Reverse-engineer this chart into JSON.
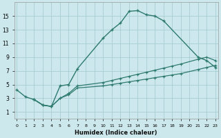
{
  "xlabel": "Humidex (Indice chaleur)",
  "bg_color": "#cde8ec",
  "grid_color": "#a8cdd4",
  "line_color": "#2d7a6e",
  "curve_x": [
    0,
    1,
    2,
    3,
    4,
    5,
    6,
    7,
    10,
    11,
    12,
    13,
    14,
    15,
    16,
    17,
    21,
    22,
    23
  ],
  "curve_y": [
    4.2,
    3.2,
    2.8,
    2.0,
    1.8,
    4.8,
    5.0,
    7.3,
    11.8,
    13.0,
    14.0,
    15.7,
    15.8,
    15.2,
    15.0,
    14.3,
    9.0,
    8.5,
    7.5
  ],
  "flat1_x": [
    2,
    3,
    4,
    5,
    6,
    7,
    10,
    11,
    12,
    13,
    14,
    15,
    16,
    17,
    18,
    19,
    21,
    22,
    23
  ],
  "flat1_y": [
    2.8,
    2.0,
    1.8,
    3.0,
    3.5,
    4.5,
    4.8,
    5.0,
    5.2,
    5.4,
    5.6,
    5.8,
    6.0,
    6.2,
    6.4,
    6.6,
    7.2,
    7.5,
    7.8
  ],
  "flat2_x": [
    2,
    3,
    4,
    5,
    6,
    7,
    10,
    11,
    12,
    13,
    14,
    15,
    16,
    17,
    18,
    19,
    21,
    22,
    23
  ],
  "flat2_y": [
    2.8,
    2.0,
    1.8,
    3.0,
    3.7,
    4.8,
    5.3,
    5.6,
    5.9,
    6.2,
    6.5,
    6.8,
    7.1,
    7.4,
    7.7,
    8.0,
    8.7,
    9.0,
    8.5
  ],
  "xlim": [
    -0.3,
    23.3
  ],
  "ylim": [
    0,
    17
  ],
  "yticks": [
    1,
    3,
    5,
    7,
    9,
    11,
    13,
    15
  ],
  "xticks": [
    0,
    1,
    2,
    3,
    4,
    5,
    6,
    7,
    8,
    9,
    10,
    11,
    12,
    13,
    14,
    15,
    16,
    17,
    18,
    19,
    20,
    21,
    22,
    23
  ]
}
